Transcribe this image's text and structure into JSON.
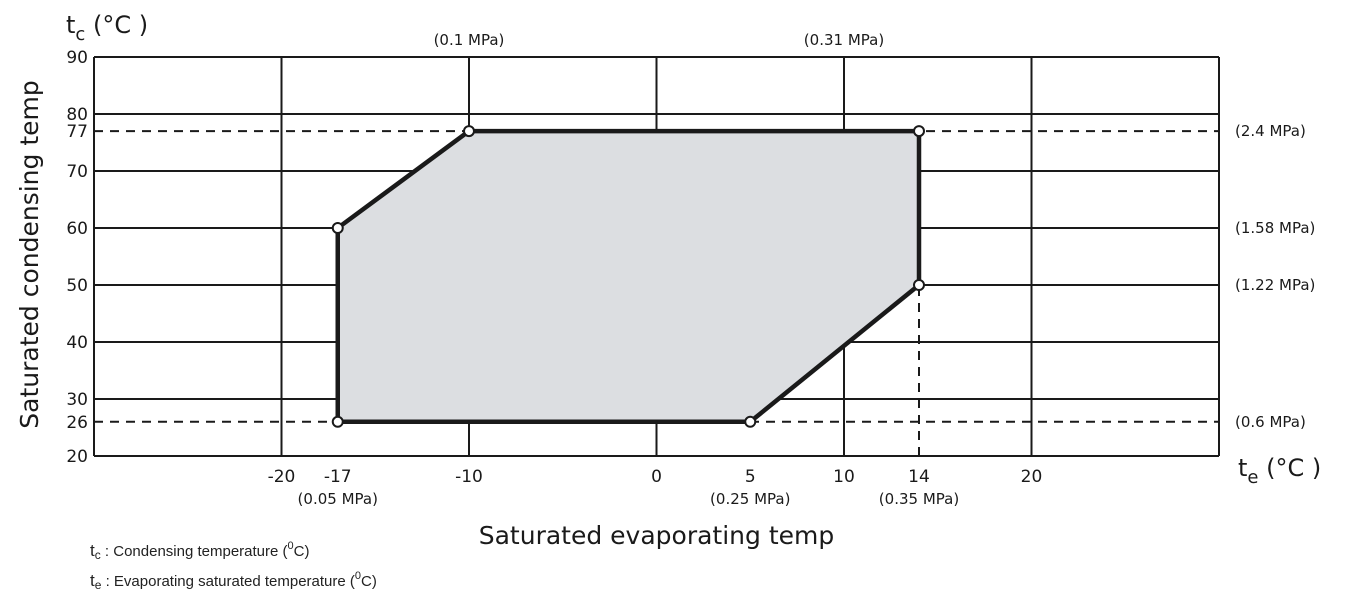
{
  "chart_data": {
    "type": "area",
    "ylabel": "Saturated condensing temp",
    "xlabel": "Saturated evaporating temp",
    "y_axis_symbol": {
      "base": "t",
      "sub": "c",
      "unit": "(°C )"
    },
    "x_axis_symbol": {
      "base": "t",
      "sub": "e",
      "unit": "(°C )"
    },
    "xlim": [
      -30,
      30
    ],
    "ylim": [
      20,
      90
    ],
    "x_ticks": [
      -20,
      -17,
      -10,
      0,
      5,
      10,
      14,
      20
    ],
    "y_ticks": [
      20,
      26,
      30,
      40,
      50,
      60,
      70,
      77,
      80,
      90
    ],
    "grid": {
      "vertical": [
        -30,
        -20,
        -10,
        0,
        10,
        20,
        30
      ],
      "horizontal": [
        20,
        30,
        40,
        50,
        60,
        70,
        80,
        90
      ]
    },
    "dashed_lines": {
      "horizontal": [
        77,
        26
      ],
      "vertical": [
        {
          "x": 14,
          "y_from": 20,
          "y_to": 50
        }
      ]
    },
    "envelope": [
      {
        "x": -17,
        "y": 60
      },
      {
        "x": -10,
        "y": 77
      },
      {
        "x": 14,
        "y": 77
      },
      {
        "x": 14,
        "y": 50
      },
      {
        "x": 5,
        "y": 26
      },
      {
        "x": -17,
        "y": 26
      }
    ],
    "pressure_labels_top": [
      {
        "x": -10,
        "text": "(0.1 MPa)"
      },
      {
        "x": 10,
        "text": "(0.31 MPa)"
      }
    ],
    "pressure_labels_right": [
      {
        "y": 77,
        "text": "(2.4 MPa)"
      },
      {
        "y": 60,
        "text": "(1.58 MPa)"
      },
      {
        "y": 50,
        "text": "(1.22 MPa)"
      },
      {
        "y": 26,
        "text": "(0.6 MPa)"
      }
    ],
    "pressure_labels_bottom": [
      {
        "x": -17,
        "text": "(0.05 MPa)"
      },
      {
        "x": 5,
        "text": "(0.25 MPa)"
      },
      {
        "x": 14,
        "text": "(0.35 MPa)"
      }
    ],
    "colors": {
      "fill": "#dcdee1",
      "outline": "#1a1a1a",
      "grid": "#1a1a1a"
    }
  },
  "legend": [
    {
      "sym": "t",
      "sub": "c",
      "text_before": ": Condensing  temperature (",
      "sup": "0",
      "text_after": "C)"
    },
    {
      "sym": "t",
      "sub": "e",
      "text_before": ": Evaporating saturated temperature (",
      "sup": "0",
      "text_after": "C)"
    }
  ]
}
